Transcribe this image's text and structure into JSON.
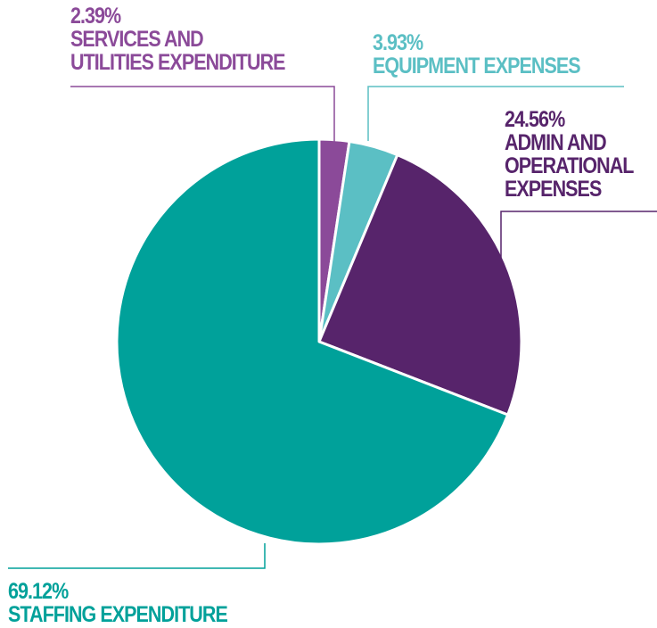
{
  "chart_data": {
    "type": "pie",
    "start_angle_deg": 0,
    "direction": "clockwise",
    "slices": [
      {
        "label_lines": [
          "SERVICES AND",
          "UTILITIES EXPENDITURE"
        ],
        "percent_text": "2.39%",
        "value": 2.39,
        "color": "#8b4a99"
      },
      {
        "label_lines": [
          "EQUIPMENT EXPENSES"
        ],
        "percent_text": "3.93%",
        "value": 3.93,
        "color": "#5bbfc4"
      },
      {
        "label_lines": [
          "ADMIN AND",
          "OPERATIONAL",
          "EXPENSES"
        ],
        "percent_text": "24.56%",
        "value": 24.56,
        "color": "#57246b"
      },
      {
        "label_lines": [
          "STAFFING EXPENDITURE"
        ],
        "percent_text": "69.12%",
        "value": 69.12,
        "color": "#00a19a"
      }
    ],
    "label_colors": {
      "services": "#8b4a99",
      "equipment": "#5bbfc4",
      "admin": "#57246b",
      "staffing": "#00a19a"
    },
    "leader_line_colors": {
      "services": "#8b4a99",
      "equipment": "#5bbfc4",
      "admin": "#57246b",
      "staffing": "#00a19a"
    }
  }
}
